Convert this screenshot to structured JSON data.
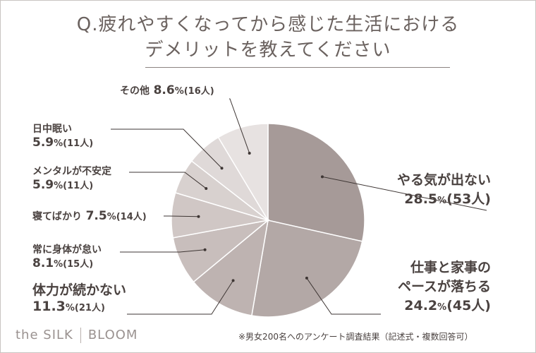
{
  "title_line1": "Q.疲れやすくなってから感じた生活における",
  "title_line2": "デメリットを教えてください",
  "chart_data": {
    "type": "pie",
    "unit_label": "%",
    "slices": [
      {
        "label": "やる気が出ない",
        "percent": "28.5",
        "count": "(53人)",
        "value": 28.5,
        "color": "#a69a98"
      },
      {
        "label": "仕事と家事のペースが落ちる",
        "percent": "24.2",
        "count": "(45人)",
        "value": 24.2,
        "color": "#b3a8a6"
      },
      {
        "label": "体力が続かない",
        "percent": "11.3",
        "count": "(21人)",
        "value": 11.3,
        "color": "#beb3b1"
      },
      {
        "label": "常に身体が怠い",
        "percent": "8.1",
        "count": "(15人)",
        "value": 8.1,
        "color": "#c8bebc"
      },
      {
        "label": "寝てばかり",
        "percent": "7.5",
        "count": "(14人)",
        "value": 7.5,
        "color": "#d0c7c5"
      },
      {
        "label": "メンタルが不安定",
        "percent": "5.9",
        "count": "(11人)",
        "value": 5.9,
        "color": "#d8d1cf"
      },
      {
        "label": "日中眠い",
        "percent": "5.9",
        "count": "(11人)",
        "value": 5.9,
        "color": "#dfd9d8"
      },
      {
        "label": "その他",
        "percent": "8.6",
        "count": "(16人)",
        "value": 8.6,
        "color": "#e7e2e1"
      }
    ]
  },
  "labels": {
    "l0_name": "やる気が出ない",
    "l1_name_a": "仕事と家事の",
    "l1_name_b": "ペースが落ちる",
    "l2_name": "体力が続かない",
    "l3_name": "常に身体が怠い",
    "l4_name": "寝てばかり",
    "l5_name": "メンタルが不安定",
    "l6_name": "日中眠い",
    "l7_name": "その他"
  },
  "footer": {
    "logo_left": "the SILK",
    "logo_right": "BLOOM",
    "note": "※男女200名へのアンケート調査結果（記述式・複数回答可）"
  }
}
